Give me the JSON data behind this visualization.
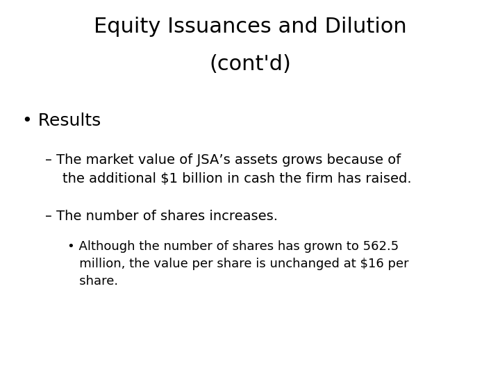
{
  "title_line1": "Equity Issuances and Dilution",
  "title_line2": "(cont'd)",
  "title_fontsize": 22,
  "title_color": "#000000",
  "background_color": "#ffffff",
  "bullet1": "• Results",
  "bullet1_fontsize": 18,
  "dash1_line1": "– The market value of JSA’s assets grows because of",
  "dash1_line2": "    the additional $1 billion in cash the firm has raised.",
  "dash1_fontsize": 14,
  "dash2": "– The number of shares increases.",
  "dash2_fontsize": 14,
  "sub_bullet_line1": "• Although the number of shares has grown to 562.5",
  "sub_bullet_line2": "   million, the value per share is unchanged at $16 per",
  "sub_bullet_line3": "   share.",
  "sub_bullet_fontsize": 13,
  "font_family": "DejaVu Sans"
}
